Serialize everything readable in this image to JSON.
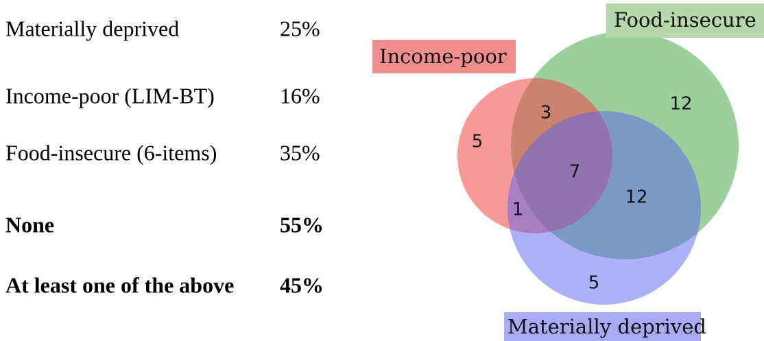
{
  "table": {
    "rows": [
      [
        "Materially deprived",
        "25%"
      ],
      [
        "Income-poor (LIM-BT)",
        "16%"
      ],
      [
        "Food-insecure (6-items)",
        "35%"
      ],
      [
        "None",
        "55%"
      ],
      [
        "At least one of the above",
        "45%"
      ]
    ]
  },
  "venn": {
    "sets": [
      "Income-poor",
      "Food-insecure",
      "Materially deprived"
    ],
    "regions": [
      5,
      3,
      12,
      7,
      12,
      1,
      5
    ]
  }
}
